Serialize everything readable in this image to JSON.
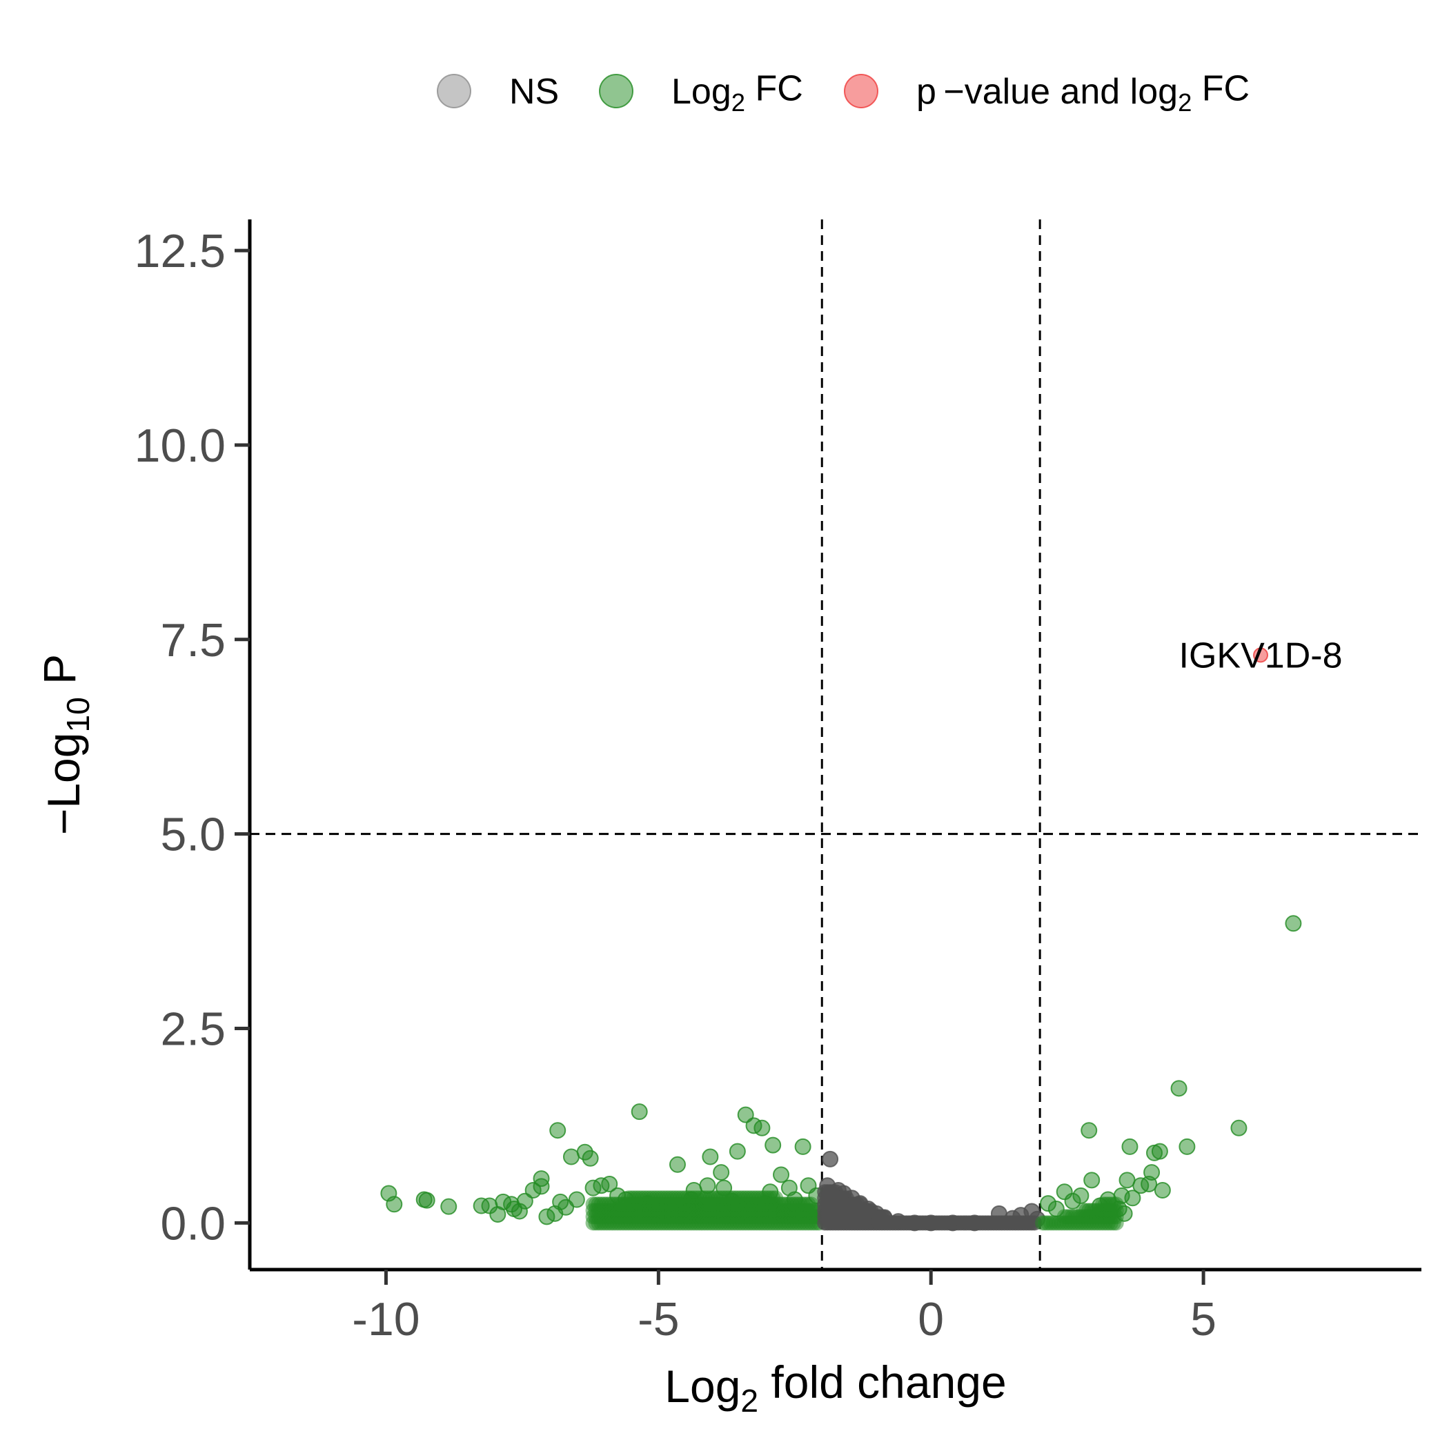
{
  "chart_data": {
    "type": "scatter",
    "title": "",
    "xlabel": {
      "pre": "Log",
      "sub": "2",
      "post": " fold change"
    },
    "ylabel": {
      "pre": "−Log",
      "sub": "10",
      "post": " P"
    },
    "xlim": [
      -12.5,
      9.0
    ],
    "ylim": [
      -0.6,
      12.9
    ],
    "x_ticks": [
      -10,
      -5,
      0,
      5
    ],
    "x_tick_labels": [
      "-10",
      "-5",
      "0",
      "5"
    ],
    "y_ticks": [
      0,
      2.5,
      5,
      7.5,
      10,
      12.5
    ],
    "y_tick_labels": [
      "0.0",
      "2.5",
      "5.0",
      "7.5",
      "10.0",
      "12.5"
    ],
    "fc_cutoffs": [
      -2,
      2
    ],
    "p_cutoff": 5,
    "grid": false,
    "legend_position": "top",
    "legend": [
      {
        "key": "ns",
        "pre": "NS",
        "sub": "",
        "post": "",
        "color": "#8c8c8c"
      },
      {
        "key": "fc",
        "pre": "Log",
        "sub": "2",
        "post": " FC",
        "color": "#228b22"
      },
      {
        "key": "both",
        "pre": "p −value and log",
        "sub": "2",
        "post": " FC",
        "color": "#ef3b3b"
      }
    ],
    "colors": {
      "ns": "#505050",
      "fc": "#228b22",
      "both": "#ef3b3b"
    },
    "series": [
      {
        "name": "NS",
        "points": [
          [
            -1.85,
            0.82
          ],
          [
            -1.9,
            0.48
          ],
          [
            -1.7,
            0.42
          ],
          [
            -1.6,
            0.38
          ],
          [
            -1.45,
            0.32
          ],
          [
            -1.3,
            0.25
          ],
          [
            -1.15,
            0.18
          ],
          [
            -1.0,
            0.12
          ],
          [
            -0.85,
            0.06
          ],
          [
            -0.6,
            0.02
          ],
          [
            -0.3,
            0.0
          ],
          [
            0.0,
            0.0
          ],
          [
            0.4,
            0.0
          ],
          [
            0.8,
            0.0
          ],
          [
            1.25,
            0.12
          ],
          [
            1.5,
            0.06
          ],
          [
            1.65,
            0.1
          ],
          [
            1.85,
            0.15
          ],
          [
            1.95,
            0.05
          ]
        ]
      },
      {
        "name": "Log2 FC",
        "points": [
          [
            -9.95,
            0.38
          ],
          [
            -9.85,
            0.24
          ],
          [
            -9.3,
            0.3
          ],
          [
            -9.25,
            0.29
          ],
          [
            -8.85,
            0.21
          ],
          [
            -8.25,
            0.22
          ],
          [
            -8.1,
            0.22
          ],
          [
            -7.95,
            0.11
          ],
          [
            -7.85,
            0.27
          ],
          [
            -7.7,
            0.24
          ],
          [
            -7.65,
            0.18
          ],
          [
            -7.55,
            0.15
          ],
          [
            -7.45,
            0.28
          ],
          [
            -7.3,
            0.42
          ],
          [
            -7.15,
            0.57
          ],
          [
            -7.15,
            0.47
          ],
          [
            -7.05,
            0.08
          ],
          [
            -6.9,
            0.12
          ],
          [
            -6.85,
            1.19
          ],
          [
            -6.8,
            0.27
          ],
          [
            -6.7,
            0.2
          ],
          [
            -6.6,
            0.85
          ],
          [
            -6.5,
            0.3
          ],
          [
            -6.35,
            0.91
          ],
          [
            -6.25,
            0.83
          ],
          [
            -6.2,
            0.45
          ],
          [
            -6.05,
            0.48
          ],
          [
            -5.9,
            0.5
          ],
          [
            -5.75,
            0.35
          ],
          [
            -5.6,
            0.3
          ],
          [
            -5.45,
            0.2
          ],
          [
            -5.35,
            1.43
          ],
          [
            -5.2,
            0.25
          ],
          [
            -5.0,
            0.12
          ],
          [
            -4.65,
            0.75
          ],
          [
            -4.4,
            0.3
          ],
          [
            -4.35,
            0.42
          ],
          [
            -4.1,
            0.48
          ],
          [
            -4.05,
            0.85
          ],
          [
            -3.85,
            0.65
          ],
          [
            -3.8,
            0.45
          ],
          [
            -3.65,
            0.28
          ],
          [
            -3.55,
            0.92
          ],
          [
            -3.4,
            1.39
          ],
          [
            -3.25,
            1.25
          ],
          [
            -3.1,
            1.22
          ],
          [
            -3.05,
            0.25
          ],
          [
            -2.95,
            0.4
          ],
          [
            -2.9,
            1.0
          ],
          [
            -2.75,
            0.62
          ],
          [
            -2.6,
            0.45
          ],
          [
            -2.5,
            0.3
          ],
          [
            -2.35,
            0.98
          ],
          [
            -2.25,
            0.48
          ],
          [
            -2.1,
            0.35
          ],
          [
            2.15,
            0.25
          ],
          [
            2.3,
            0.18
          ],
          [
            2.45,
            0.4
          ],
          [
            2.6,
            0.28
          ],
          [
            2.75,
            0.35
          ],
          [
            2.9,
            1.19
          ],
          [
            2.95,
            0.55
          ],
          [
            3.05,
            0.1
          ],
          [
            3.1,
            0.22
          ],
          [
            3.25,
            0.3
          ],
          [
            3.45,
            0.18
          ],
          [
            3.5,
            0.35
          ],
          [
            3.55,
            0.12
          ],
          [
            3.6,
            0.55
          ],
          [
            3.7,
            0.32
          ],
          [
            3.65,
            0.98
          ],
          [
            3.85,
            0.48
          ],
          [
            4.0,
            0.5
          ],
          [
            4.05,
            0.65
          ],
          [
            4.1,
            0.9
          ],
          [
            4.2,
            0.92
          ],
          [
            4.25,
            0.42
          ],
          [
            4.55,
            1.73
          ],
          [
            4.7,
            0.98
          ],
          [
            5.65,
            1.22
          ],
          [
            6.65,
            3.85
          ]
        ]
      },
      {
        "name": "p-value and log2 FC",
        "points": [
          [
            6.05,
            7.3
          ]
        ]
      }
    ],
    "annotations": [
      {
        "label": "IGKV1D-8",
        "x": 6.05,
        "y": 7.3
      }
    ]
  }
}
